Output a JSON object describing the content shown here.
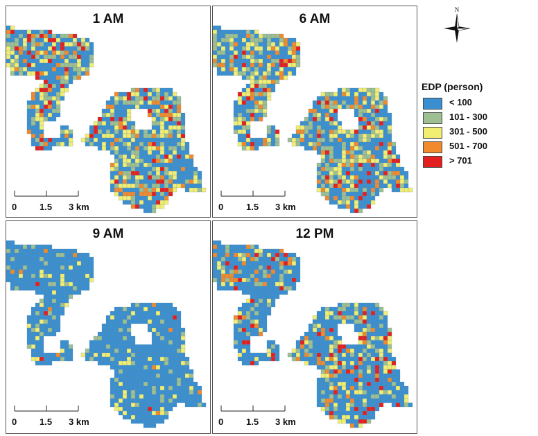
{
  "panels": [
    {
      "title": "1 AM",
      "mix": [
        0.44,
        0.2,
        0.19,
        0.09,
        0.08
      ]
    },
    {
      "title": "6 AM",
      "mix": [
        0.44,
        0.21,
        0.19,
        0.09,
        0.07
      ]
    },
    {
      "title": "9 AM",
      "mix": [
        0.8,
        0.1,
        0.08,
        0.01,
        0.01
      ]
    },
    {
      "title": "12 PM",
      "mix": [
        0.6,
        0.13,
        0.13,
        0.07,
        0.07
      ]
    }
  ],
  "scale": {
    "zero": "0",
    "mid": "1.5",
    "end": "3 km"
  },
  "north_label": "N",
  "legend": {
    "title": "EDP (person)",
    "items": [
      {
        "label": "< 100",
        "color": "#3a8fd0"
      },
      {
        "label": "101 - 300",
        "color": "#9dbf91"
      },
      {
        "label": "301 - 500",
        "color": "#f2ee72"
      },
      {
        "label": "501 - 700",
        "color": "#f08a2c"
      },
      {
        "label": "> 701",
        "color": "#e3201f"
      }
    ]
  }
}
